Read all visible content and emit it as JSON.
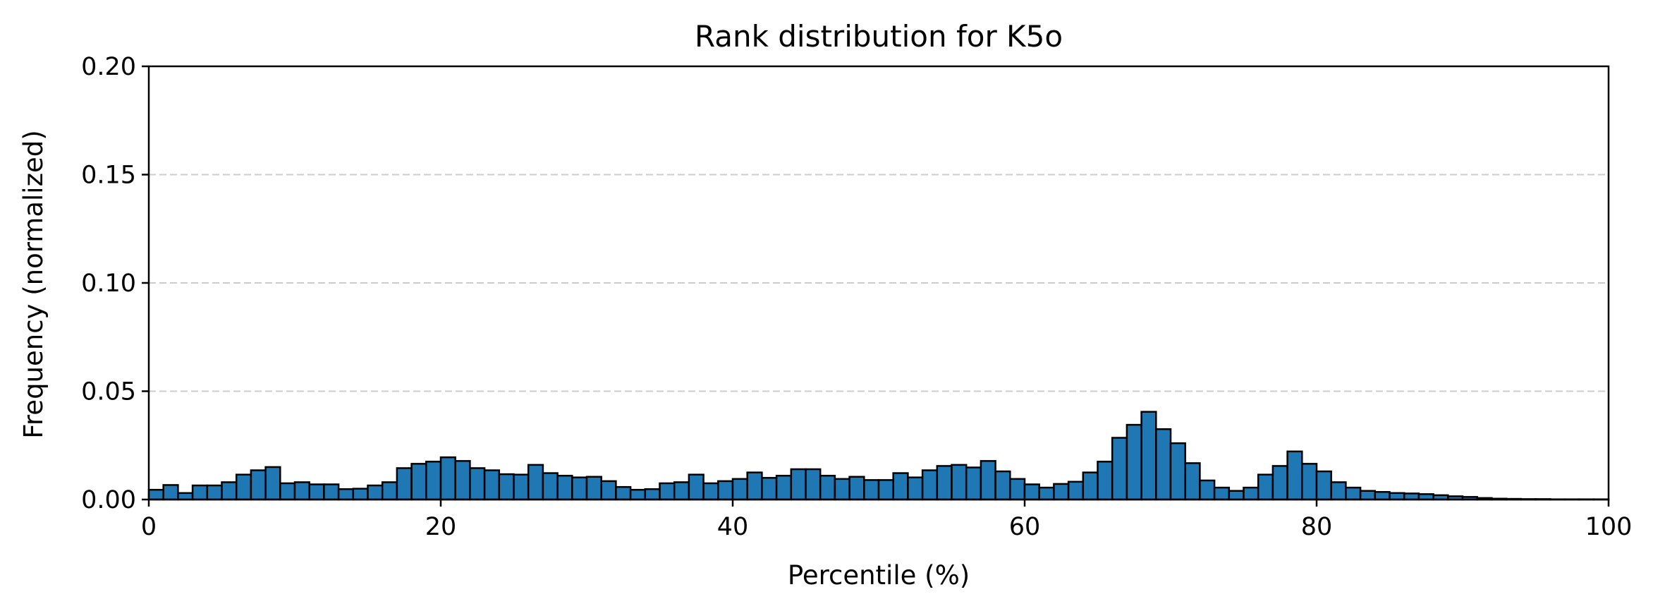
{
  "chart_data": {
    "type": "bar",
    "title": "Rank distribution for K5o",
    "xlabel": "Percentile (%)",
    "ylabel": "Frequency (normalized)",
    "xlim": [
      0,
      100
    ],
    "ylim": [
      0,
      0.2
    ],
    "xticks": [
      0,
      20,
      40,
      60,
      80,
      100
    ],
    "xtick_labels": [
      "0",
      "20",
      "40",
      "60",
      "80",
      "100"
    ],
    "yticks": [
      0,
      0.05,
      0.1,
      0.15,
      0.2
    ],
    "ytick_labels": [
      "0.00",
      "0.05",
      "0.10",
      "0.15",
      "0.20"
    ],
    "grid": "y dashed",
    "bin_width": 1,
    "bar_color": "#1f77b4",
    "edge_color": "#000000",
    "bins_start": [
      0,
      1,
      2,
      3,
      4,
      5,
      6,
      7,
      8,
      9,
      10,
      11,
      12,
      13,
      14,
      15,
      16,
      17,
      18,
      19,
      20,
      21,
      22,
      23,
      24,
      25,
      26,
      27,
      28,
      29,
      30,
      31,
      32,
      33,
      34,
      35,
      36,
      37,
      38,
      39,
      40,
      41,
      42,
      43,
      44,
      45,
      46,
      47,
      48,
      49,
      50,
      51,
      52,
      53,
      54,
      55,
      56,
      57,
      58,
      59,
      60,
      61,
      62,
      63,
      64,
      65,
      66,
      67,
      68,
      69,
      70,
      71,
      72,
      73,
      74,
      75,
      76,
      77,
      78,
      79,
      80,
      81,
      82,
      83,
      84,
      85,
      86,
      87,
      88,
      89,
      90,
      91,
      92,
      93,
      94,
      95,
      96,
      97,
      98,
      99
    ],
    "values": [
      0.0045,
      0.0067,
      0.003,
      0.0065,
      0.0065,
      0.008,
      0.0115,
      0.0135,
      0.015,
      0.0075,
      0.008,
      0.007,
      0.007,
      0.0048,
      0.005,
      0.0065,
      0.008,
      0.0145,
      0.0165,
      0.0175,
      0.0195,
      0.0178,
      0.0145,
      0.0135,
      0.0117,
      0.0115,
      0.016,
      0.0122,
      0.011,
      0.0102,
      0.0105,
      0.0085,
      0.0058,
      0.0045,
      0.0048,
      0.0075,
      0.008,
      0.0115,
      0.0075,
      0.0085,
      0.0095,
      0.0125,
      0.01,
      0.011,
      0.014,
      0.014,
      0.011,
      0.0095,
      0.0105,
      0.009,
      0.009,
      0.0122,
      0.0102,
      0.0135,
      0.0155,
      0.016,
      0.0148,
      0.0178,
      0.013,
      0.0095,
      0.007,
      0.0055,
      0.0072,
      0.0082,
      0.0125,
      0.0175,
      0.0285,
      0.0345,
      0.0405,
      0.0325,
      0.026,
      0.0168,
      0.0088,
      0.0055,
      0.004,
      0.0055,
      0.0115,
      0.0155,
      0.0222,
      0.0165,
      0.013,
      0.008,
      0.0055,
      0.004,
      0.0035,
      0.003,
      0.0028,
      0.0025,
      0.002,
      0.0015,
      0.0012,
      0.0007,
      0.0004,
      0.0003,
      0.0002,
      0.0002,
      0.0001,
      0.0001,
      0.0001,
      0.0001
    ]
  }
}
